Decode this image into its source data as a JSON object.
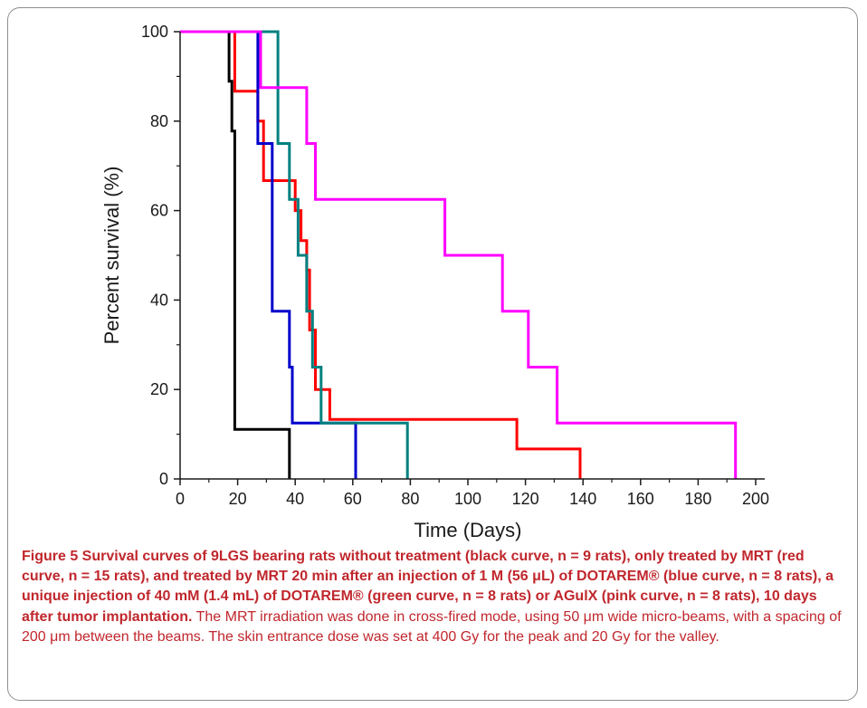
{
  "chart_data": {
    "type": "line",
    "step": true,
    "xlabel": "Time (Days)",
    "ylabel": "Percent survival (%)",
    "xlim": [
      0,
      200
    ],
    "ylim": [
      0,
      100
    ],
    "xticks": [
      0,
      20,
      40,
      60,
      80,
      100,
      120,
      140,
      160,
      180,
      200
    ],
    "yticks": [
      0,
      20,
      40,
      60,
      80,
      100
    ],
    "grid": false,
    "series": [
      {
        "color": "#000000",
        "points": [
          [
            0,
            100
          ],
          [
            17,
            100
          ],
          [
            17,
            88.9
          ],
          [
            18,
            88.9
          ],
          [
            18,
            77.8
          ],
          [
            19,
            77.8
          ],
          [
            19,
            11.1
          ],
          [
            38,
            11.1
          ],
          [
            38,
            0
          ]
        ]
      },
      {
        "color": "#ff0000",
        "points": [
          [
            0,
            100
          ],
          [
            19,
            100
          ],
          [
            19,
            86.7
          ],
          [
            27,
            86.7
          ],
          [
            27,
            80
          ],
          [
            29,
            80
          ],
          [
            29,
            66.7
          ],
          [
            40,
            66.7
          ],
          [
            40,
            60
          ],
          [
            42,
            60
          ],
          [
            42,
            53.3
          ],
          [
            44,
            53.3
          ],
          [
            44,
            46.7
          ],
          [
            45,
            46.7
          ],
          [
            45,
            33.3
          ],
          [
            47,
            33.3
          ],
          [
            47,
            20
          ],
          [
            52,
            20
          ],
          [
            52,
            13.3
          ],
          [
            117,
            13.3
          ],
          [
            117,
            6.7
          ],
          [
            139,
            6.7
          ],
          [
            139,
            0
          ]
        ]
      },
      {
        "color": "#0000cc",
        "points": [
          [
            0,
            100
          ],
          [
            27,
            100
          ],
          [
            27,
            75
          ],
          [
            32,
            75
          ],
          [
            32,
            37.5
          ],
          [
            38,
            37.5
          ],
          [
            38,
            25
          ],
          [
            39,
            25
          ],
          [
            39,
            12.5
          ],
          [
            61,
            12.5
          ],
          [
            61,
            0
          ]
        ]
      },
      {
        "color": "#008080",
        "points": [
          [
            0,
            100
          ],
          [
            34,
            100
          ],
          [
            34,
            75
          ],
          [
            38,
            75
          ],
          [
            38,
            62.5
          ],
          [
            41,
            62.5
          ],
          [
            41,
            50
          ],
          [
            44,
            50
          ],
          [
            44,
            37.5
          ],
          [
            46,
            37.5
          ],
          [
            46,
            25
          ],
          [
            49,
            25
          ],
          [
            49,
            12.5
          ],
          [
            79,
            12.5
          ],
          [
            79,
            0
          ]
        ]
      },
      {
        "color": "#ff00ff",
        "points": [
          [
            0,
            100
          ],
          [
            28,
            100
          ],
          [
            28,
            87.5
          ],
          [
            44,
            87.5
          ],
          [
            44,
            75
          ],
          [
            47,
            75
          ],
          [
            47,
            62.5
          ],
          [
            92,
            62.5
          ],
          [
            92,
            50
          ],
          [
            112,
            50
          ],
          [
            112,
            37.5
          ],
          [
            121,
            37.5
          ],
          [
            121,
            25
          ],
          [
            131,
            25
          ],
          [
            131,
            12.5
          ],
          [
            193,
            12.5
          ],
          [
            193,
            0
          ]
        ]
      }
    ]
  },
  "caption": {
    "lead": "Figure 5 Survival curves of 9LGS bearing rats without treatment (black curve, n = 9 rats), only treated by MRT (red curve, n = 15 rats), and treated by MRT 20 min after an injection of 1 M (56 μL) of DOTAREM® (blue curve, n = 8 rats), a unique injection of 40 mM (1.4 mL) of DOTAREM® (green curve, n = 8 rats) or AGulX (pink curve, n = 8 rats), 10 days after tumor implantation.",
    "rest": "The MRT irradiation was done in cross-fired mode, using 50 μm wide micro-beams, with a spacing of 200 μm between the beams. The skin entrance dose was set at 400 Gy for the peak and 20 Gy for the valley."
  }
}
